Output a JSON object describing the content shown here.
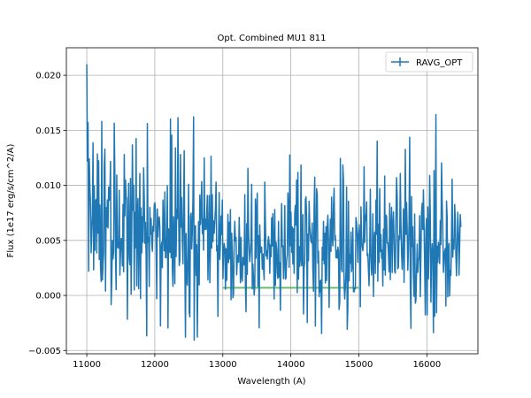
{
  "chart_data": {
    "type": "line",
    "title": "Opt. Combined MU1 811",
    "xlabel": "Wavelength (A)",
    "ylabel": "Flux (1e17 erg/s/cm^2/A)",
    "xlim": [
      10700,
      16750
    ],
    "ylim": [
      -0.0053,
      0.0225
    ],
    "x_ticks": [
      11000,
      12000,
      13000,
      14000,
      15000,
      16000
    ],
    "y_ticks": [
      -0.005,
      0.0,
      0.005,
      0.01,
      0.015,
      0.02
    ],
    "x_tick_labels": [
      "11000",
      "12000",
      "13000",
      "14000",
      "15000",
      "16000"
    ],
    "y_tick_labels": [
      "−0.005",
      "0.000",
      "0.005",
      "0.010",
      "0.015",
      "0.020"
    ],
    "grid": true,
    "legend": {
      "position": "top-right",
      "entries": [
        "RAVG_OPT"
      ]
    },
    "series": [
      {
        "name": "RAVG_OPT",
        "color": "#1f77b4",
        "x_start": 11000,
        "x_end": 16500,
        "points": 600,
        "seed": 811,
        "first_values": [
          0.021,
          0.0122,
          0.0157,
          0.0022,
          0.0124,
          0.0098
        ]
      }
    ],
    "band": {
      "color": "#2ca02c",
      "x": [
        13000,
        15000
      ],
      "y": 0.0007
    }
  }
}
